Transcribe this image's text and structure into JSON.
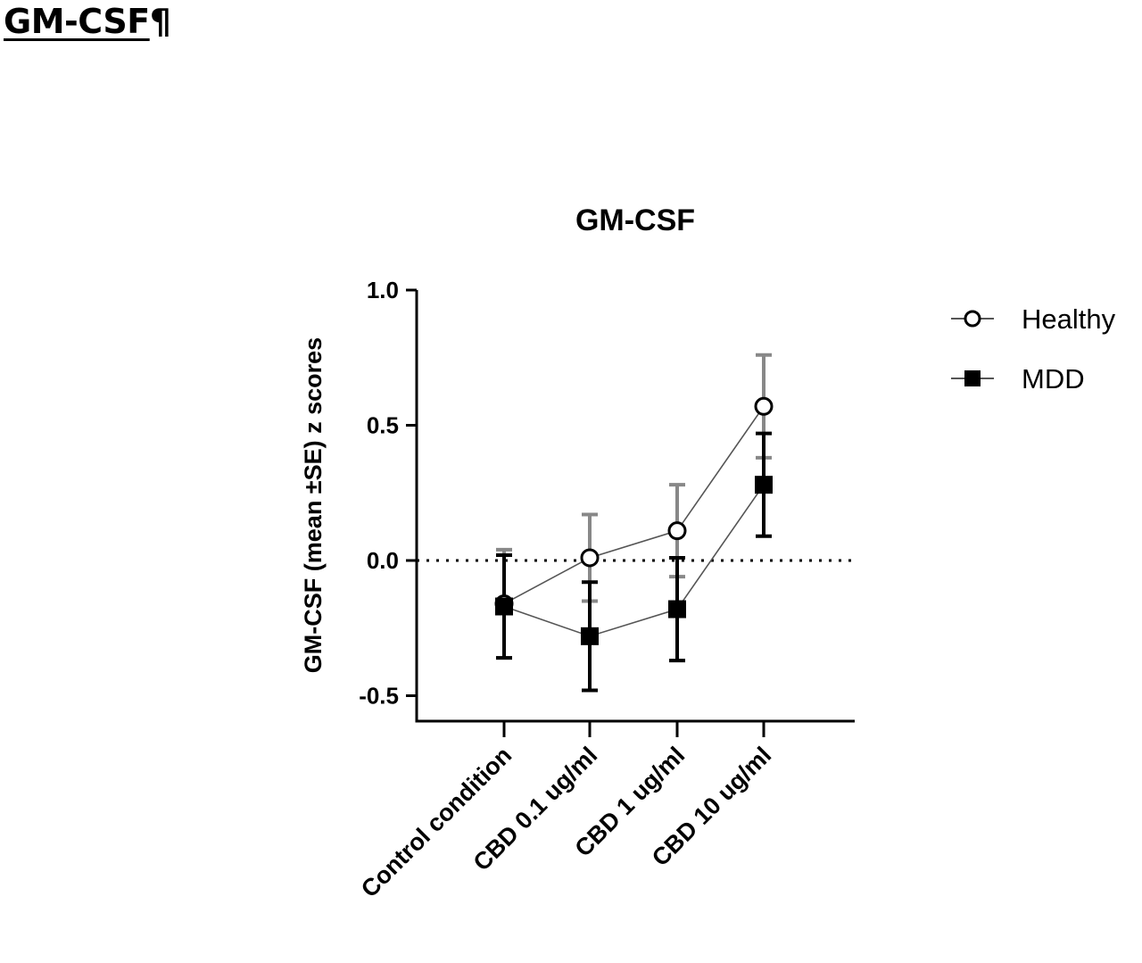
{
  "heading": {
    "text": "GM-CSF",
    "mark": "¶"
  },
  "chart_data": {
    "type": "line",
    "title": "GM-CSF",
    "ylabel": "GM-CSF (mean ±SE) z scores",
    "xlabel": "",
    "categories": [
      "Control condition",
      "CBD 0.1 ug/ml",
      "CBD 1 ug/ml",
      "CBD 10 ug/ml"
    ],
    "ylim": [
      -0.6,
      1.0
    ],
    "yticks": [
      -0.5,
      0.0,
      0.5,
      1.0
    ],
    "ytick_labels": [
      "-0.5",
      "0.0",
      "0.5",
      "1.0"
    ],
    "reference_line": {
      "y": 0.0,
      "style": "dotted"
    },
    "legend_position": "right",
    "series": [
      {
        "name": "Healthy",
        "marker": "open-circle",
        "color": "#888888",
        "values": [
          -0.16,
          0.01,
          0.11,
          0.57
        ],
        "se": [
          0.2,
          0.16,
          0.17,
          0.19
        ]
      },
      {
        "name": "MDD",
        "marker": "filled-square",
        "color": "#000000",
        "values": [
          -0.17,
          -0.28,
          -0.18,
          0.28
        ],
        "se": [
          0.19,
          0.2,
          0.19,
          0.19
        ]
      }
    ]
  }
}
